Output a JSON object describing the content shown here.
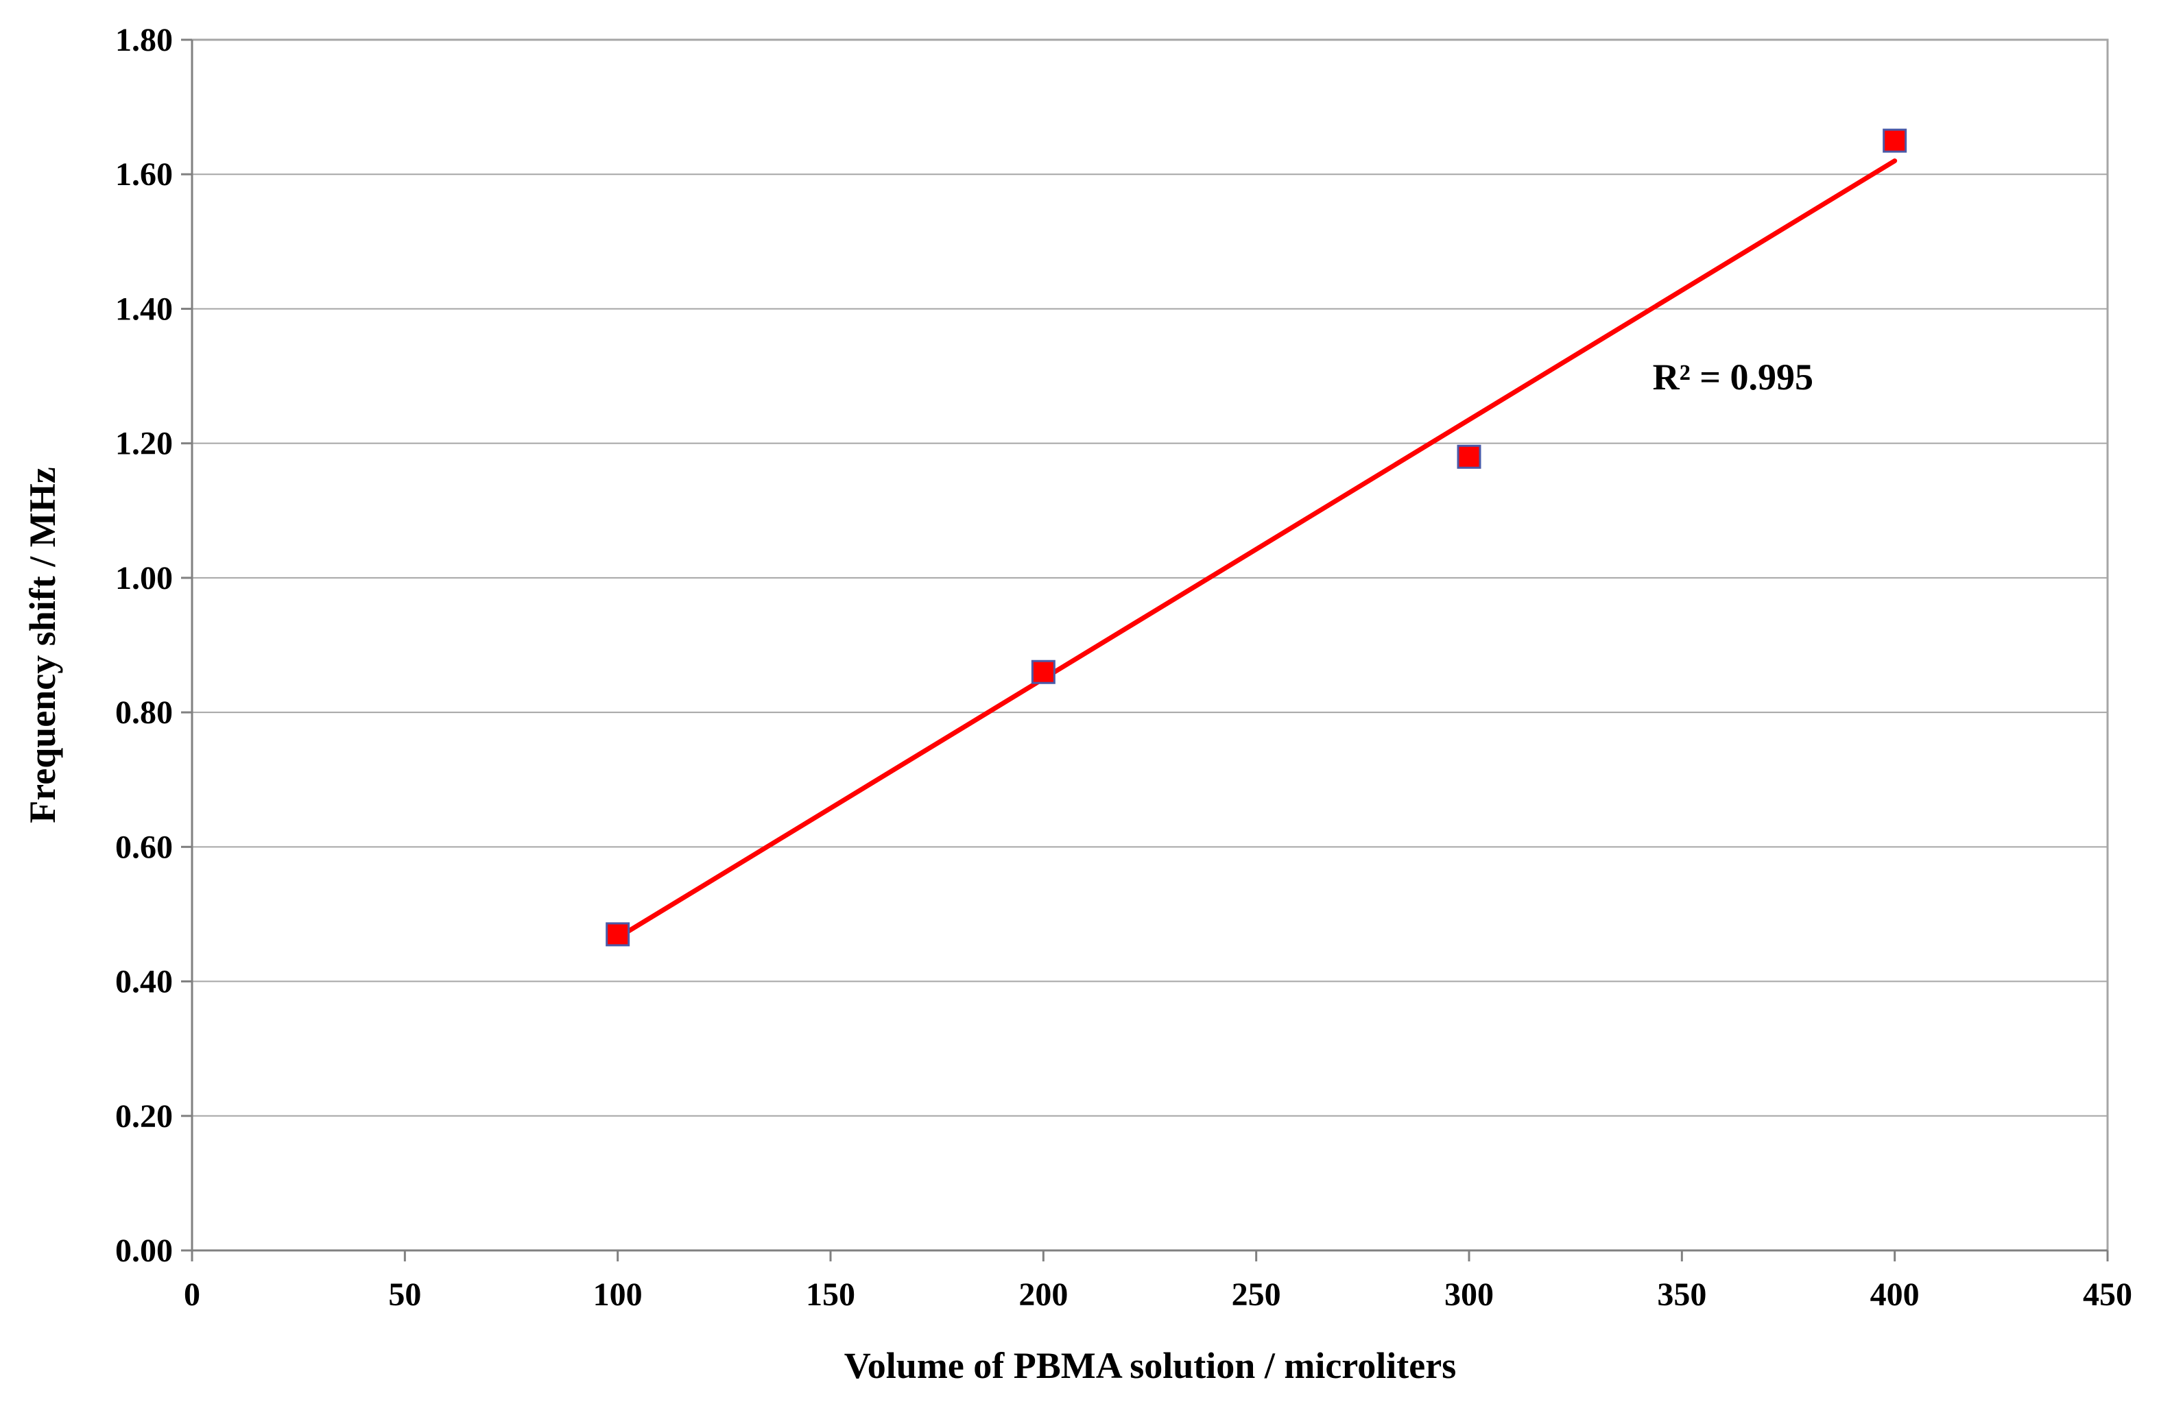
{
  "chart_data": {
    "type": "scatter",
    "title": "",
    "xlabel": "Volume of PBMA solution / microliters",
    "ylabel": "Frequency shift  / MHz",
    "xlim": [
      0,
      450
    ],
    "ylim": [
      0,
      1.8
    ],
    "x_ticks": [
      "0",
      "50",
      "100",
      "150",
      "200",
      "250",
      "300",
      "350",
      "400",
      "450"
    ],
    "y_ticks": [
      "0.00",
      "0.20",
      "0.40",
      "0.60",
      "0.80",
      "1.00",
      "1.20",
      "1.40",
      "1.60",
      "1.80"
    ],
    "grid": "horizontal",
    "series": [
      {
        "marker": "square",
        "color": "#ff0000",
        "edge_color": "#4a5aa8",
        "points": [
          {
            "x": 100,
            "y": 0.47
          },
          {
            "x": 200,
            "y": 0.86
          },
          {
            "x": 300,
            "y": 1.18
          },
          {
            "x": 400,
            "y": 1.65
          }
        ]
      }
    ],
    "trendline": {
      "type": "linear",
      "color": "#ff0000",
      "x_range": [
        100,
        400
      ],
      "y_range": [
        0.465,
        1.62
      ]
    },
    "annotations": [
      {
        "text": "R² = 0.995",
        "x": 362,
        "y": 1.28
      }
    ]
  }
}
